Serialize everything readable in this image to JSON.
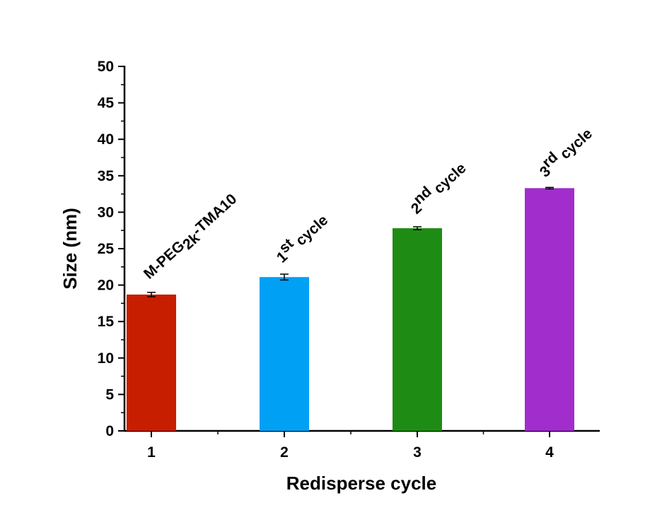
{
  "chart_data": {
    "type": "bar",
    "xlabel": "Redisperse cycle",
    "ylabel": "Size (nm)",
    "ylim": [
      0,
      50
    ],
    "yticks": [
      0,
      5,
      10,
      15,
      20,
      25,
      30,
      35,
      40,
      45,
      50
    ],
    "categories": [
      "1",
      "2",
      "3",
      "4"
    ],
    "values": [
      18.7,
      21.1,
      27.8,
      33.3
    ],
    "errors": [
      0.3,
      0.4,
      0.2,
      0.1
    ],
    "colors": [
      "#C81E00",
      "#00A0F5",
      "#1E8C14",
      "#A02DCC"
    ],
    "annotations": [
      {
        "parts": [
          {
            "text": "M-PEG"
          },
          {
            "text": "2k",
            "shift": "sub"
          },
          {
            "text": "-TMA10",
            "shift": "up"
          }
        ]
      },
      {
        "parts": [
          {
            "text": "1"
          },
          {
            "text": "st",
            "shift": "super"
          },
          {
            "text": " cycle",
            "shift": "down"
          }
        ]
      },
      {
        "parts": [
          {
            "text": "2"
          },
          {
            "text": "nd",
            "shift": "super"
          },
          {
            "text": " cycle",
            "shift": "down"
          }
        ]
      },
      {
        "parts": [
          {
            "text": "3"
          },
          {
            "text": "rd",
            "shift": "super"
          },
          {
            "text": " cycle",
            "shift": "down"
          }
        ]
      }
    ],
    "grid": false,
    "legend": "none"
  }
}
